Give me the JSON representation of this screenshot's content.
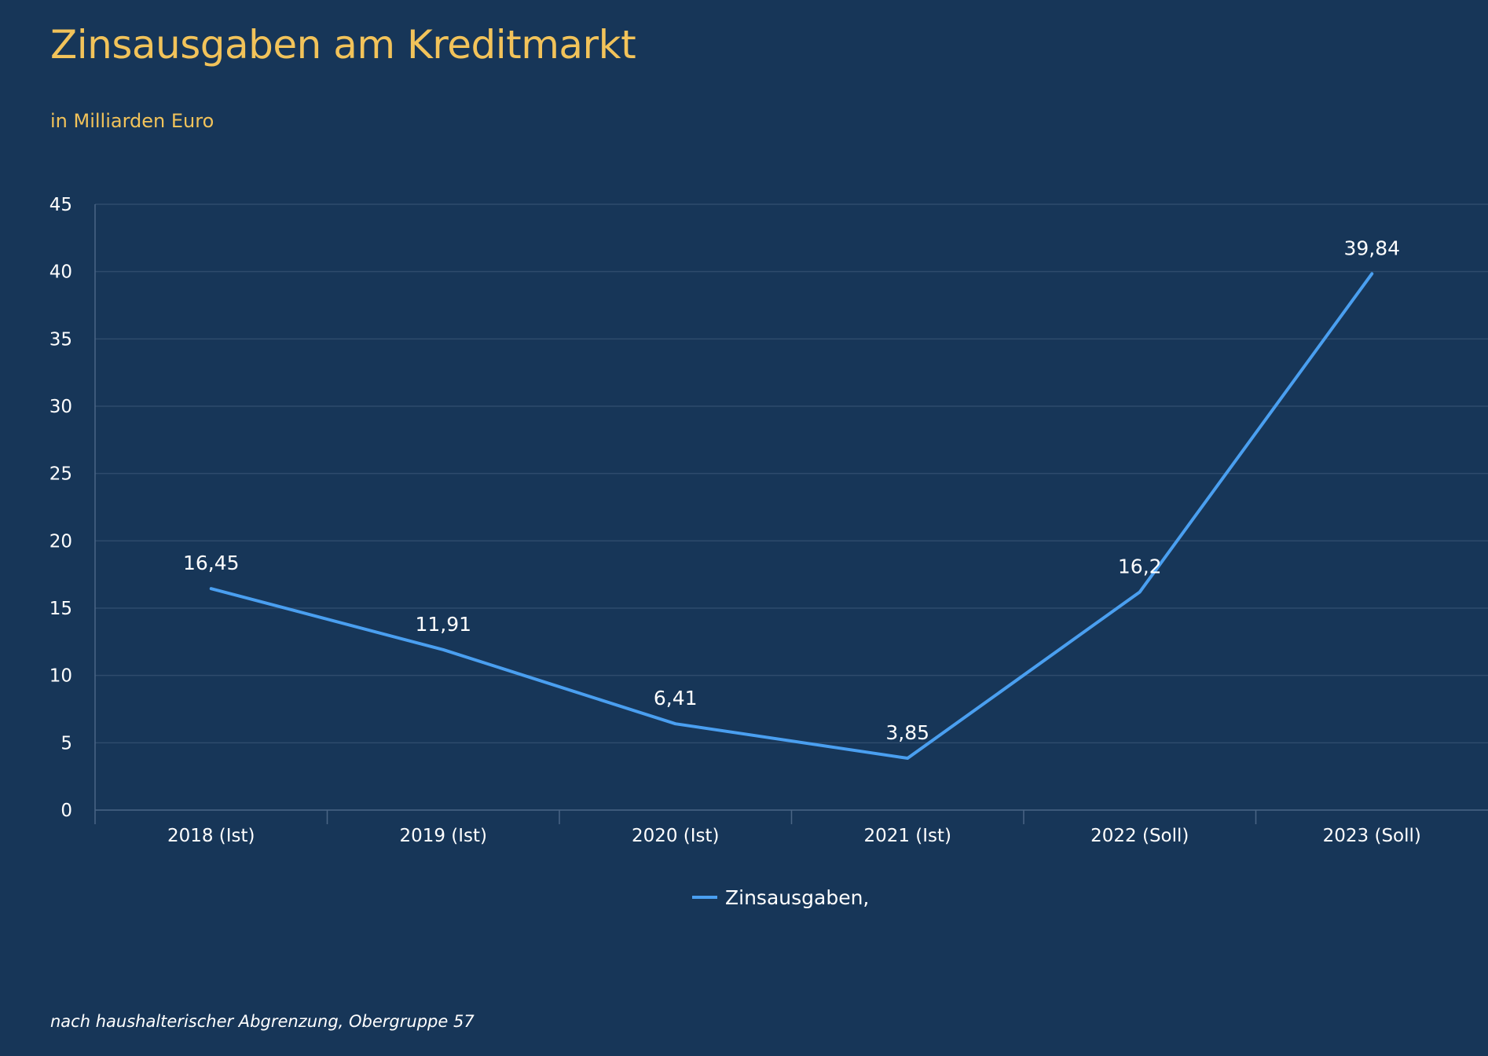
{
  "chart_data": {
    "type": "line",
    "title": "Zinsausgaben am Kreditmarkt",
    "subtitle": "in Milliarden Euro",
    "footnote": "nach haushalterischer Abgrenzung, Obergruppe 57",
    "categories": [
      "2018 (Ist)",
      "2019 (Ist)",
      "2020 (Ist)",
      "2021 (Ist)",
      "2022 (Soll)",
      "2023 (Soll)"
    ],
    "series": [
      {
        "name": "Zinsausgaben,",
        "values": [
          16.45,
          11.91,
          6.41,
          3.85,
          16.2,
          39.84
        ],
        "value_labels": [
          "16,45",
          "11,91",
          "6,41",
          "3,85",
          "16,2",
          "39,84"
        ],
        "color": "#4a9ff0"
      }
    ],
    "ylim": [
      0,
      45
    ],
    "yticks": [
      0,
      5,
      10,
      15,
      20,
      25,
      30,
      35,
      40,
      45
    ],
    "grid": true,
    "legend": "bottom-center",
    "colors": {
      "background": "#173658",
      "title": "#f2c35a",
      "text": "#ffffff",
      "grid": "#2e4b6c",
      "axis": "#4a6585"
    }
  }
}
